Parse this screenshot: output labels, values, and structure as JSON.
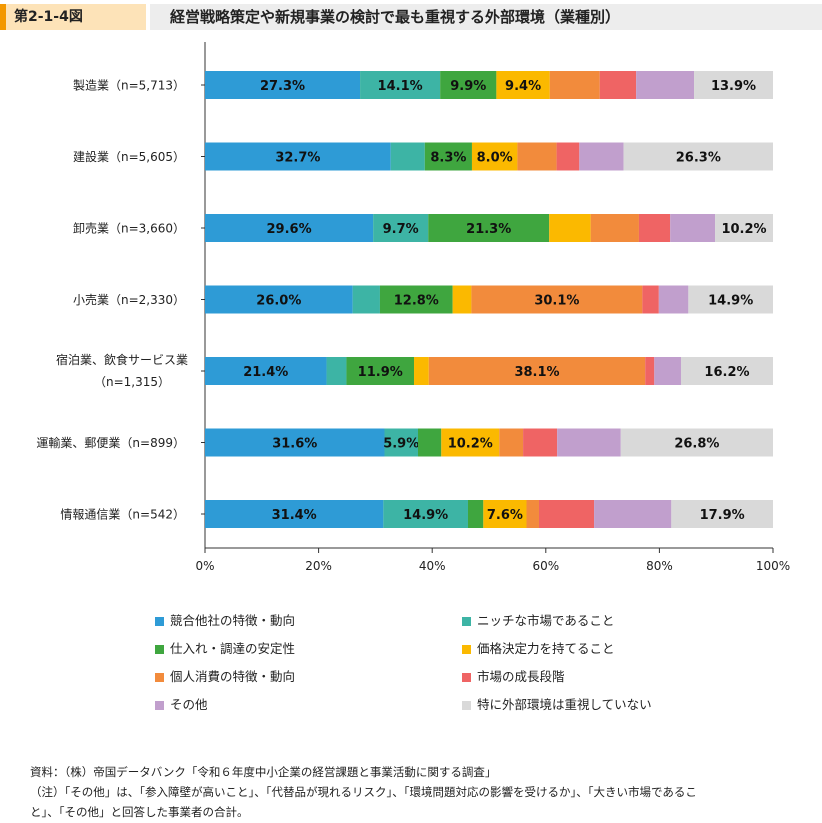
{
  "header": {
    "figure_number": "第2-1-4図",
    "title": "経営戦略策定や新規事業の検討で最も重視する外部環境（業種別）"
  },
  "chart_data": {
    "type": "bar",
    "orientation": "horizontal-stacked-100",
    "categories": [
      "製造業（n=5,713）",
      "建設業（n=5,605）",
      "卸売業（n=3,660）",
      "小売業（n=2,330）",
      "宿泊業、飲食サービス業（n=1,315）",
      "運輸業、郵便業（n=899）",
      "情報通信業（n=542）"
    ],
    "category_lines": [
      [
        "製造業（n=5,713）"
      ],
      [
        "建設業（n=5,605）"
      ],
      [
        "卸売業（n=3,660）"
      ],
      [
        "小売業（n=2,330）"
      ],
      [
        "宿泊業、飲食サービス業",
        "（n=1,315）"
      ],
      [
        "運輸業、郵便業（n=899）"
      ],
      [
        "情報通信業（n=542）"
      ]
    ],
    "x_ticks": [
      "0%",
      "20%",
      "40%",
      "60%",
      "80%",
      "100%"
    ],
    "xlim": [
      0,
      100
    ],
    "series": [
      {
        "name": "競合他社の特徴・動向",
        "color": "#2e9bd6",
        "values": [
          27.3,
          32.7,
          29.6,
          26.0,
          21.4,
          31.6,
          31.4
        ],
        "labels": [
          "27.3%",
          "32.7%",
          "29.6%",
          "26.0%",
          "21.4%",
          "31.6%",
          "31.4%"
        ]
      },
      {
        "name": "ニッチな市場であること",
        "color": "#3db4a5",
        "values": [
          14.1,
          6.0,
          9.7,
          4.8,
          3.5,
          5.9,
          14.9
        ],
        "labels": [
          "14.1%",
          "",
          "9.7%",
          "",
          "",
          "5.9%",
          "14.9%"
        ]
      },
      {
        "name": "仕入れ・調達の安定性",
        "color": "#3fa63f",
        "values": [
          9.9,
          8.3,
          21.3,
          12.8,
          11.9,
          4.1,
          2.7
        ],
        "labels": [
          "9.9%",
          "8.3%",
          "21.3%",
          "12.8%",
          "11.9%",
          "",
          ""
        ]
      },
      {
        "name": "価格決定力を持てること",
        "color": "#fbb900",
        "values": [
          9.4,
          8.0,
          7.3,
          3.3,
          2.6,
          10.2,
          7.6
        ],
        "labels": [
          "9.4%",
          "8.0%",
          "",
          "",
          "",
          "10.2%",
          "7.6%"
        ]
      },
      {
        "name": "個人消費の特徴・動向",
        "color": "#f28b3c",
        "values": [
          8.8,
          6.9,
          8.5,
          30.1,
          38.1,
          4.2,
          2.2
        ],
        "labels": [
          "",
          "",
          "",
          "30.1%",
          "38.1%",
          "",
          ""
        ]
      },
      {
        "name": "市場の成長段階",
        "color": "#ef6464",
        "values": [
          6.4,
          4.0,
          5.5,
          2.9,
          1.6,
          6.0,
          9.7
        ],
        "labels": [
          "",
          "",
          "",
          "",
          "",
          "",
          ""
        ]
      },
      {
        "name": "その他",
        "color": "#c19fcd",
        "values": [
          10.2,
          7.8,
          7.9,
          5.2,
          4.7,
          11.2,
          13.6
        ],
        "labels": [
          "",
          "",
          "",
          "",
          "",
          "",
          ""
        ]
      },
      {
        "name": "特に外部環境は重視していない",
        "color": "#d9d9d9",
        "values": [
          13.9,
          26.3,
          10.2,
          14.9,
          16.2,
          26.8,
          17.9
        ],
        "labels": [
          "13.9%",
          "26.3%",
          "10.2%",
          "14.9%",
          "16.2%",
          "26.8%",
          "17.9%"
        ]
      }
    ]
  },
  "notes": {
    "source": "資料：（株）帝国データバンク「令和６年度中小企業の経営課題と事業活動に関する調査」",
    "note_line1": "（注）「その他」は、「参入障壁が高いこと」、「代替品が現れるリスク」、「環境問題対応の影響を受けるか」、「大きい市場であるこ",
    "note_line2": "と」、「その他」と回答した事業者の合計。"
  }
}
